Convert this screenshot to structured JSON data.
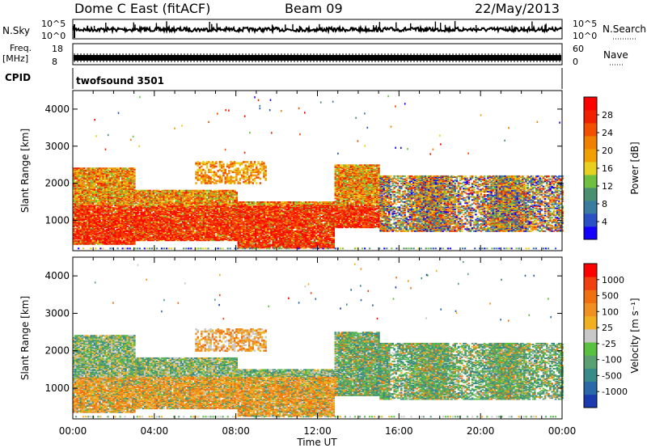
{
  "header": {
    "station": "Dome C East (fitACF)",
    "beam": "Beam 09",
    "date": "22/May/2013"
  },
  "top_panels": {
    "nsky_label": "N.Sky",
    "nsearch_label": "N.Search",
    "nsky_ticks": [
      "10^5",
      "10^0"
    ],
    "nsearch_ticks": [
      "10^5",
      "10^0"
    ],
    "freq_label_1": "Freq.",
    "freq_label_2": "[MHz]",
    "freq_ticks": [
      "18",
      "8"
    ],
    "nave_label": "Nave",
    "nave_ticks": [
      "60",
      "0"
    ],
    "cpid_label": "CPID",
    "cpid_value": "twofsound 3501"
  },
  "x_axis": {
    "label": "Time UT",
    "ticks": [
      "00:00",
      "04:00",
      "08:00",
      "12:00",
      "16:00",
      "20:00",
      "00:00"
    ],
    "range_hours": [
      0,
      24
    ]
  },
  "chart_data": [
    {
      "type": "heatmap",
      "name": "power",
      "ylabel": "Slant Range [km]",
      "yticks": [
        "1000",
        "2000",
        "3000",
        "4000"
      ],
      "ylim": [
        180,
        4500
      ],
      "colorbar_label": "Power [dB]",
      "colorbar_ticks": [
        "4",
        "8",
        "12",
        "16",
        "20",
        "24",
        "28"
      ],
      "colors": [
        "#1400ff",
        "#2a50c6",
        "#3a7ca0",
        "#4a9070",
        "#70c040",
        "#e8d020",
        "#f0a000",
        "#f08000",
        "#f05000",
        "#f02000",
        "#ff0000"
      ]
    },
    {
      "type": "heatmap",
      "name": "velocity",
      "ylabel": "Slant Range [km]",
      "yticks": [
        "1000",
        "2000",
        "3000",
        "4000"
      ],
      "ylim": [
        180,
        4500
      ],
      "colorbar_label": "Velocity [m s⁻¹]",
      "colorbar_ticks": [
        "1000",
        "500",
        "100",
        "25",
        "-25",
        "-100",
        "-500",
        "-1000"
      ],
      "colors": [
        "#1a3ab0",
        "#2a68a8",
        "#3a8a88",
        "#5aa070",
        "#5ac040",
        "#c8c8c8",
        "#f0b020",
        "#f09020",
        "#f07010",
        "#f04010",
        "#ff0000"
      ]
    }
  ]
}
